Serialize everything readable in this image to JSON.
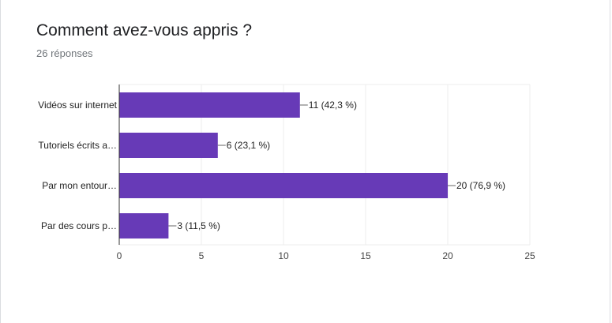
{
  "card": {
    "title": "Comment avez-vous appris ?",
    "subtitle": "26 réponses"
  },
  "colors": {
    "bar": "#673ab7",
    "axis": "#333333",
    "grid": "#eeeeee"
  },
  "chart_data": {
    "type": "bar",
    "orientation": "horizontal",
    "categories": [
      "Vidéos sur internet",
      "Tutoriels écrits a…",
      "Par mon entour…",
      "Par des cours p…"
    ],
    "values": [
      11,
      6,
      20,
      3
    ],
    "data_labels": [
      "11 (42,3 %)",
      "6 (23,1 %)",
      "20 (76,9 %)",
      "3 (11,5 %)"
    ],
    "xlim": [
      0,
      25
    ],
    "xticks": [
      0,
      5,
      10,
      15,
      20,
      25
    ],
    "xtick_labels": [
      "0",
      "5",
      "10",
      "15",
      "20",
      "25"
    ],
    "grid": true,
    "legend": "none"
  }
}
